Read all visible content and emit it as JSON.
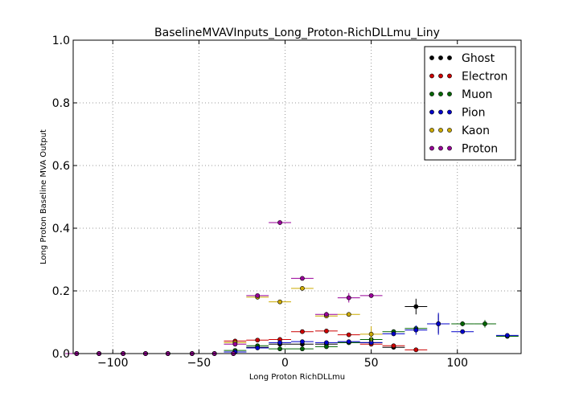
{
  "chart_data": {
    "type": "scatter",
    "title": "BaselineMVAVInputs_Long_Proton-RichDLLmu_Liny",
    "xlabel": "Long Proton RichDLLmu",
    "ylabel": "Long Proton Baseline MVA Output",
    "xlim": [
      -123,
      137
    ],
    "ylim": [
      0,
      1.0
    ],
    "xticks": [
      -100,
      -50,
      0,
      50,
      100
    ],
    "xtick_labels": [
      "−100",
      "−50",
      "0",
      "50",
      "100"
    ],
    "yticks": [
      0.0,
      0.2,
      0.4,
      0.6,
      0.8,
      1.0
    ],
    "ytick_labels": [
      "0.0",
      "0.2",
      "0.4",
      "0.6",
      "0.8",
      "1.0"
    ],
    "grid": true,
    "legend_position": "top-right",
    "series": [
      {
        "name": "Ghost",
        "color": "#000000",
        "x": [
          -121,
          -108,
          -94,
          -81,
          -68,
          -54,
          -41,
          -30,
          -29,
          -16,
          -3,
          10,
          24,
          37,
          50,
          63,
          76,
          89
        ],
        "y": [
          0,
          0,
          0,
          0,
          0,
          0,
          0,
          0,
          0.005,
          0.02,
          0.03,
          0.03,
          0.03,
          0.035,
          0.035,
          0.02,
          0.15,
          0.095
        ],
        "xerr": [
          6.5,
          6.5,
          6.5,
          6.5,
          6.5,
          6.5,
          6.5,
          6.5,
          6.5,
          6.5,
          6.5,
          6.5,
          6.5,
          6.5,
          6.5,
          6.5,
          6.5,
          6.5
        ],
        "yerr": [
          0,
          0,
          0,
          0,
          0,
          0,
          0,
          0,
          0.003,
          0.004,
          0.004,
          0.005,
          0.005,
          0.005,
          0.006,
          0.006,
          0.025,
          0.03
        ]
      },
      {
        "name": "Electron",
        "color": "#cc0000",
        "x": [
          -121,
          -108,
          -94,
          -81,
          -68,
          -54,
          -41,
          -30,
          -29,
          -16,
          -3,
          10,
          24,
          37,
          50,
          63,
          76
        ],
        "y": [
          0,
          0,
          0,
          0,
          0,
          0,
          0,
          0,
          0.04,
          0.043,
          0.045,
          0.07,
          0.072,
          0.06,
          0.03,
          0.025,
          0.012
        ],
        "xerr": [
          6.5,
          6.5,
          6.5,
          6.5,
          6.5,
          6.5,
          6.5,
          6.5,
          6.5,
          6.5,
          6.5,
          6.5,
          6.5,
          6.5,
          6.5,
          6.5,
          6.5
        ],
        "yerr": [
          0,
          0,
          0,
          0,
          0,
          0,
          0,
          0,
          0.004,
          0.004,
          0.005,
          0.006,
          0.006,
          0.006,
          0.005,
          0.004,
          0.004
        ]
      },
      {
        "name": "Muon",
        "color": "#006600",
        "x": [
          -121,
          -108,
          -94,
          -81,
          -68,
          -54,
          -41,
          -30,
          -29,
          -16,
          -3,
          10,
          24,
          37,
          50,
          63,
          76,
          89,
          103,
          116,
          129
        ],
        "y": [
          0,
          0,
          0,
          0,
          0,
          0,
          0,
          0,
          0.01,
          0.025,
          0.015,
          0.015,
          0.022,
          0.035,
          0.045,
          0.07,
          0.08,
          0.095,
          0.095,
          0.095,
          0.055
        ],
        "xerr": [
          6.5,
          6.5,
          6.5,
          6.5,
          6.5,
          6.5,
          6.5,
          6.5,
          6.5,
          6.5,
          6.5,
          6.5,
          6.5,
          6.5,
          6.5,
          6.5,
          6.5,
          6.5,
          6.5,
          6.5,
          6.5
        ],
        "yerr": [
          0,
          0,
          0,
          0,
          0,
          0,
          0,
          0,
          0.003,
          0.004,
          0.004,
          0.004,
          0.004,
          0.005,
          0.005,
          0.006,
          0.007,
          0.008,
          0.008,
          0.012,
          0.005
        ]
      },
      {
        "name": "Pion",
        "color": "#0000cc",
        "x": [
          -121,
          -108,
          -94,
          -81,
          -68,
          -54,
          -41,
          -30,
          -29,
          -16,
          -3,
          10,
          24,
          37,
          50,
          63,
          76,
          89,
          103,
          129
        ],
        "y": [
          0,
          0,
          0,
          0,
          0,
          0,
          0,
          0,
          0.005,
          0.018,
          0.035,
          0.038,
          0.035,
          0.038,
          0.035,
          0.063,
          0.075,
          0.095,
          0.07,
          0.058
        ],
        "xerr": [
          6.5,
          6.5,
          6.5,
          6.5,
          6.5,
          6.5,
          6.5,
          6.5,
          6.5,
          6.5,
          6.5,
          6.5,
          6.5,
          6.5,
          6.5,
          6.5,
          6.5,
          6.5,
          6.5,
          6.5
        ],
        "yerr": [
          0,
          0,
          0,
          0,
          0,
          0,
          0,
          0,
          0.002,
          0.003,
          0.003,
          0.003,
          0.003,
          0.003,
          0.003,
          0.005,
          0.015,
          0.035,
          0.006,
          0.004
        ]
      },
      {
        "name": "Kaon",
        "color": "#ccaa00",
        "x": [
          -121,
          -108,
          -94,
          -81,
          -68,
          -54,
          -41,
          -30,
          -29,
          -16,
          -3,
          10,
          24,
          37,
          50
        ],
        "y": [
          0,
          0,
          0,
          0,
          0,
          0,
          0,
          0,
          0.035,
          0.18,
          0.165,
          0.208,
          0.12,
          0.125,
          0.062
        ],
        "xerr": [
          6.5,
          6.5,
          6.5,
          6.5,
          6.5,
          6.5,
          6.5,
          6.5,
          6.5,
          6.5,
          6.5,
          6.5,
          6.5,
          6.5,
          6.5
        ],
        "yerr": [
          0,
          0,
          0,
          0,
          0,
          0,
          0,
          0,
          0.004,
          0.006,
          0.006,
          0.006,
          0.006,
          0.007,
          0.025
        ]
      },
      {
        "name": "Proton",
        "color": "#990099",
        "x": [
          -121,
          -108,
          -94,
          -81,
          -68,
          -54,
          -41,
          -30,
          -29,
          -16,
          -3,
          10,
          24,
          37,
          50
        ],
        "y": [
          0,
          0,
          0,
          0,
          0,
          0,
          0,
          0,
          0.03,
          0.185,
          0.418,
          0.24,
          0.125,
          0.178,
          0.185
        ],
        "xerr": [
          6.5,
          6.5,
          6.5,
          6.5,
          6.5,
          6.5,
          6.5,
          6.5,
          6.5,
          6.5,
          6.5,
          6.5,
          6.5,
          6.5,
          6.5
        ],
        "yerr": [
          0,
          0,
          0,
          0,
          0,
          0,
          0,
          0,
          0.004,
          0.006,
          0.008,
          0.007,
          0.008,
          0.015,
          0.006
        ]
      }
    ]
  }
}
